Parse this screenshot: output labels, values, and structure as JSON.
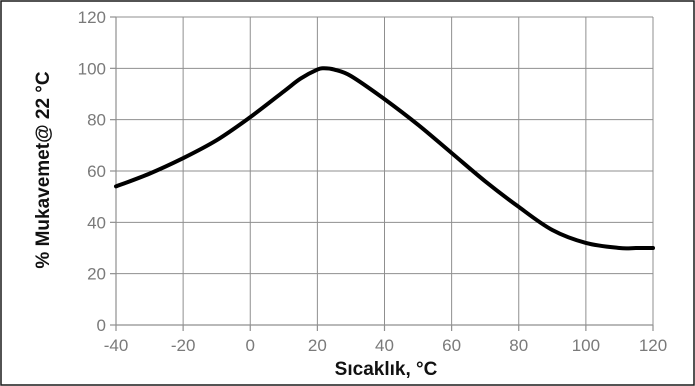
{
  "chart_data": {
    "type": "line",
    "xlabel": "Sıcaklık, °C",
    "ylabel": "% Mukavemet@ 22 °C",
    "xlim": [
      -40,
      120
    ],
    "ylim": [
      0,
      120
    ],
    "x_ticks": [
      -40,
      -20,
      0,
      20,
      40,
      60,
      80,
      100,
      120
    ],
    "y_ticks": [
      0,
      20,
      40,
      60,
      80,
      100,
      120
    ],
    "x_tick_labels": [
      "-40",
      "-20",
      "0",
      "20",
      "40",
      "60",
      "80",
      "100",
      "120"
    ],
    "y_tick_labels": [
      "0",
      "20",
      "40",
      "60",
      "80",
      "100",
      "120"
    ],
    "grid": true,
    "line_color": "#000000",
    "series": [
      {
        "x": [
          -40,
          -30,
          -20,
          -10,
          0,
          10,
          15,
          20,
          22,
          25,
          30,
          40,
          50,
          60,
          70,
          80,
          90,
          100,
          110,
          115,
          120
        ],
        "y": [
          54,
          59,
          65,
          72,
          81,
          91,
          96,
          99.5,
          100,
          99.5,
          97,
          88,
          78,
          67,
          56,
          46,
          37,
          32,
          30,
          30,
          30
        ]
      }
    ]
  }
}
